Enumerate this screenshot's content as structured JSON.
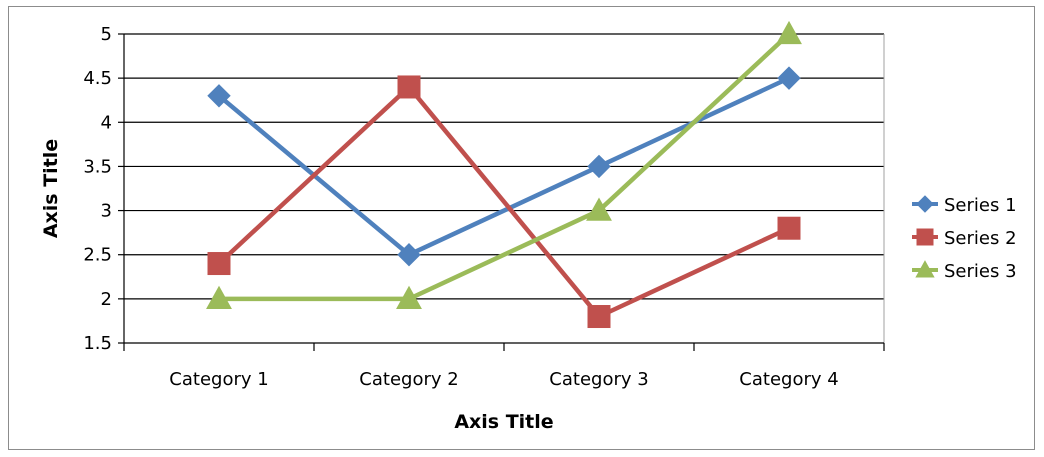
{
  "chart_data": {
    "type": "line",
    "title": "",
    "xlabel": "Axis Title",
    "ylabel": "Axis Title",
    "categories": [
      "Category 1",
      "Category 2",
      "Category 3",
      "Category 4"
    ],
    "ylim": [
      1.5,
      5
    ],
    "yticks": [
      "1.5",
      "2",
      "2.5",
      "3",
      "3.5",
      "4",
      "4.5",
      "5"
    ],
    "grid": true,
    "legend_position": "right",
    "series": [
      {
        "name": "Series 1",
        "values": [
          4.3,
          2.5,
          3.5,
          4.5
        ],
        "color": "#4f81bd",
        "marker": "diamond"
      },
      {
        "name": "Series 2",
        "values": [
          2.4,
          4.4,
          1.8,
          2.8
        ],
        "color": "#c0504d",
        "marker": "square"
      },
      {
        "name": "Series 3",
        "values": [
          2.0,
          2.0,
          3.0,
          5.0
        ],
        "color": "#9bbb59",
        "marker": "triangle"
      }
    ]
  }
}
